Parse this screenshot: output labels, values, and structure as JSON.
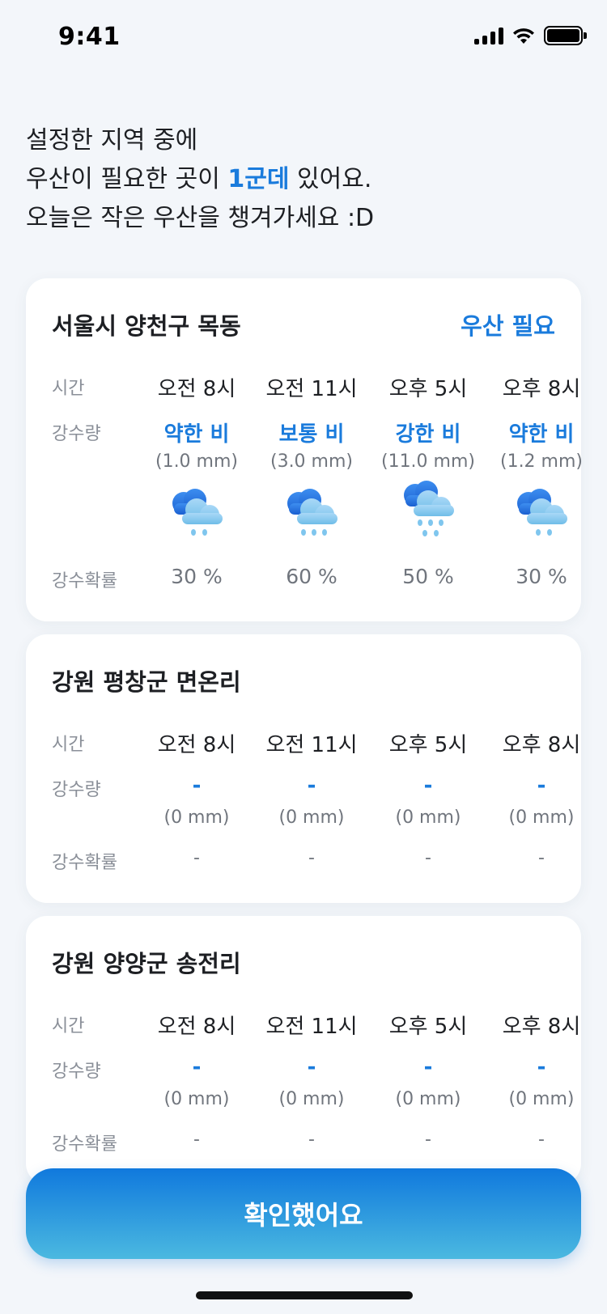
{
  "status_bar": {
    "time": "9:41"
  },
  "headline": {
    "line1": "설정한 지역 중에",
    "line2_prefix": "우산이 필요한 곳이 ",
    "line2_accent": "1군데",
    "line2_suffix": " 있어요.",
    "line3": "오늘은 작은 우산을 챙겨가세요 :D"
  },
  "labels": {
    "time": "시간",
    "precip": "강수량",
    "probability": "강수확률"
  },
  "cards": [
    {
      "title": "서울시 양천구 목동",
      "badge": "우산 필요",
      "slots": [
        {
          "time": "오전 8시",
          "amount": "약한 비",
          "mm": "(1.0 mm)",
          "icon": "light-rain-icon",
          "prob": "30 %"
        },
        {
          "time": "오전 11시",
          "amount": "보통 비",
          "mm": "(3.0 mm)",
          "icon": "moderate-rain-icon",
          "prob": "60 %"
        },
        {
          "time": "오후 5시",
          "amount": "강한 비",
          "mm": "(11.0 mm)",
          "icon": "heavy-rain-icon",
          "prob": "50 %"
        },
        {
          "time": "오후 8시",
          "amount": "약한 비",
          "mm": "(1.2 mm)",
          "icon": "light-rain-icon",
          "prob": "30 %"
        }
      ]
    },
    {
      "title": "강원 평창군 면온리",
      "slots": [
        {
          "time": "오전 8시",
          "amount": "-",
          "mm": "(0 mm)",
          "prob": "-"
        },
        {
          "time": "오전 11시",
          "amount": "-",
          "mm": "(0 mm)",
          "prob": "-"
        },
        {
          "time": "오후 5시",
          "amount": "-",
          "mm": "(0 mm)",
          "prob": "-"
        },
        {
          "time": "오후 8시",
          "amount": "-",
          "mm": "(0 mm)",
          "prob": "-"
        }
      ]
    },
    {
      "title": "강원 양양군 송전리",
      "slots": [
        {
          "time": "오전 8시",
          "amount": "-",
          "mm": "(0 mm)",
          "prob": "-"
        },
        {
          "time": "오전 11시",
          "amount": "-",
          "mm": "(0 mm)",
          "prob": "-"
        },
        {
          "time": "오후 5시",
          "amount": "-",
          "mm": "(0 mm)",
          "prob": "-"
        },
        {
          "time": "오후 8시",
          "amount": "-",
          "mm": "(0 mm)",
          "prob": "-"
        }
      ]
    }
  ],
  "confirm_button": "확인했어요",
  "colors": {
    "accent": "#1a7bdc",
    "button_top": "#1079dd",
    "button_bottom": "#4bb9e0"
  }
}
